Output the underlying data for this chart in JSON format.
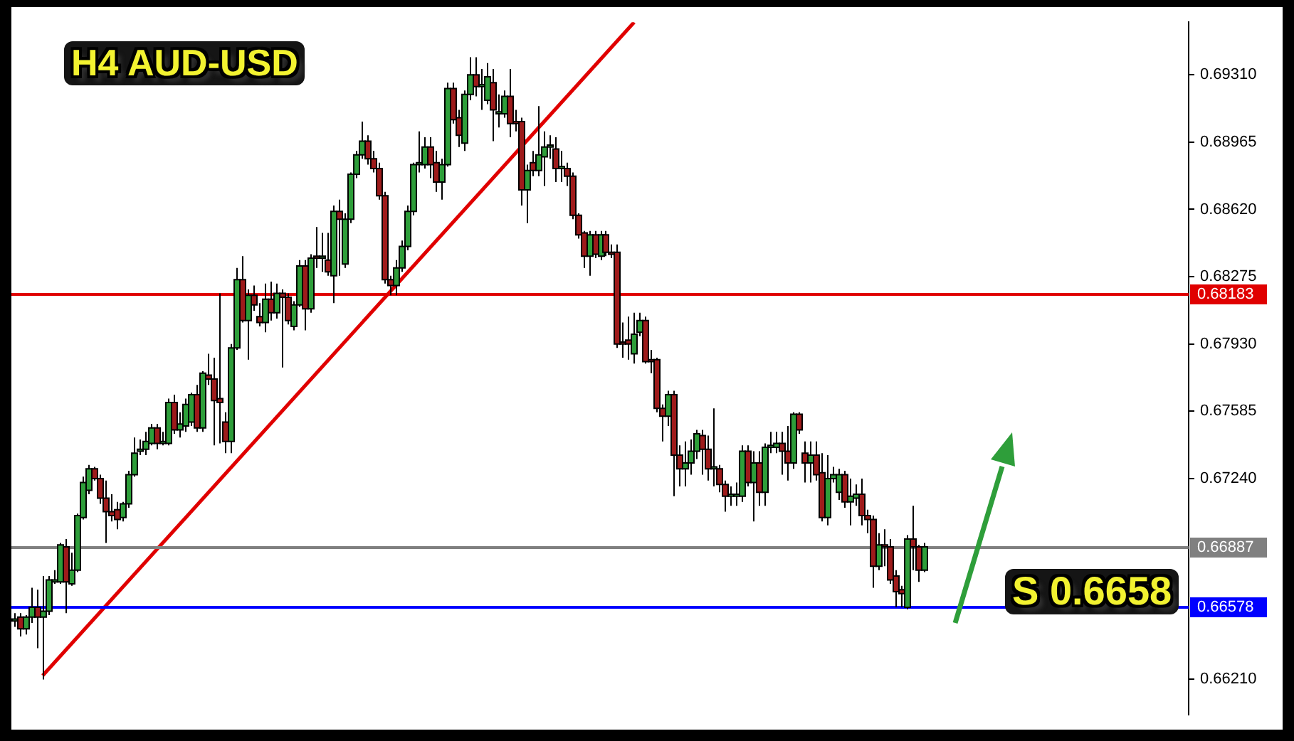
{
  "chart_data": {
    "type": "candlestick",
    "title": "H4 AUD-USD",
    "annotations": [
      "S 0.6658"
    ],
    "tick_labels": "y",
    "ylim": [
      0.6603,
      0.6958
    ],
    "yticks": [
      {
        "value": 0.6621,
        "label": "0.66210"
      },
      {
        "value": 0.6724,
        "label": "0.67240"
      },
      0.67585,
      {
        "value": 0.6793,
        "label": "0.67930"
      },
      0.68275,
      {
        "value": 0.6862,
        "label": "0.68620"
      },
      0.68965,
      {
        "value": 0.6931,
        "label": "0.69310"
      }
    ],
    "ref_lines": [
      {
        "axis": "y",
        "value": 0.68183,
        "label": "0.68183",
        "color": "#e00000"
      },
      {
        "axis": "y",
        "value": 0.66887,
        "label": "0.66887",
        "color": "#808080"
      },
      {
        "axis": "y",
        "value": 0.66578,
        "label": "0.66578",
        "color": "#0000ff"
      }
    ],
    "series": [
      {
        "type": "line",
        "color": "#e00000",
        "values": [
          null,
          null,
          null,
          null,
          null,
          0.6623,
          null,
          null,
          null,
          null,
          null,
          null,
          null,
          null,
          null,
          null,
          null,
          null,
          null,
          null,
          null,
          null,
          null,
          null,
          null,
          null,
          null,
          null,
          null,
          null,
          null,
          null,
          null,
          null,
          null,
          null,
          null,
          null,
          null,
          null,
          null,
          null,
          null,
          null,
          null,
          null,
          null,
          null,
          null,
          null,
          null,
          null,
          null,
          null,
          null,
          null,
          null,
          null,
          null,
          null,
          null,
          null,
          null,
          null,
          null,
          null,
          null,
          null,
          null,
          null,
          null,
          null,
          null,
          null,
          null,
          null,
          null,
          null,
          null,
          null,
          null,
          null,
          null,
          null,
          null,
          null,
          null,
          null,
          null,
          null,
          null,
          null,
          null,
          null,
          null,
          null,
          null,
          null,
          null,
          null,
          null,
          null,
          null,
          null,
          null,
          null,
          null,
          null,
          null,
          0.6958,
          null,
          null,
          null,
          null,
          null,
          null,
          null,
          null,
          null,
          null,
          null,
          null,
          null,
          null,
          null,
          null,
          null,
          null,
          null,
          null,
          null,
          null,
          null,
          null,
          null,
          null,
          null,
          null,
          null,
          null,
          null,
          null,
          null,
          null,
          null,
          null,
          null,
          null,
          null,
          null,
          null,
          null,
          null,
          null,
          null,
          null,
          null,
          null,
          null,
          null,
          null,
          null,
          null,
          null,
          null,
          null,
          null,
          null,
          null,
          null,
          null,
          null,
          null,
          null,
          null,
          null,
          null,
          null,
          null,
          null,
          null,
          null,
          null,
          null,
          null,
          null,
          null,
          null,
          null,
          null,
          null,
          null,
          null,
          null,
          null,
          null,
          null,
          null,
          null,
          null,
          null,
          null,
          null,
          null,
          null,
          null,
          null
        ]
      }
    ],
    "categories": [
      null,
      null,
      null,
      null,
      null,
      null,
      null,
      null,
      null,
      null,
      null,
      null,
      null,
      null,
      null,
      null,
      null,
      null,
      null,
      null,
      null,
      null,
      null,
      null,
      null,
      null,
      null,
      null,
      null,
      null,
      null,
      null,
      null,
      null,
      null,
      null,
      null,
      null,
      null,
      null,
      null,
      null,
      null,
      null,
      null,
      null,
      null,
      null,
      null,
      null,
      null,
      null,
      null,
      null,
      null,
      null,
      null,
      null,
      null,
      null,
      null,
      null,
      null,
      null,
      null,
      null,
      null,
      null,
      null,
      null,
      null,
      null,
      null,
      null,
      null,
      null,
      null,
      null,
      null,
      null,
      null,
      null,
      null,
      null,
      null,
      null,
      null,
      null,
      null,
      null,
      null,
      null,
      null,
      null,
      null,
      null,
      null,
      null,
      null,
      null,
      null,
      null,
      null,
      null,
      null,
      null,
      null,
      null,
      null,
      null,
      null,
      null,
      null,
      null,
      null,
      null,
      null,
      null,
      null,
      null,
      null,
      null,
      null,
      null,
      null,
      null,
      null,
      null,
      null,
      null,
      null,
      null,
      null,
      null,
      null,
      null,
      null,
      null,
      null,
      null,
      null,
      null,
      null,
      null,
      null,
      null,
      null,
      null,
      null,
      null,
      null,
      null,
      null,
      null,
      null,
      null,
      null,
      null,
      null,
      null,
      null,
      null,
      null,
      null,
      null,
      null,
      null,
      null,
      null,
      null,
      null,
      null,
      null,
      null,
      null,
      null,
      null,
      null,
      null,
      null,
      null,
      null,
      null,
      null,
      null,
      null,
      null,
      null,
      null,
      null,
      null,
      null,
      null,
      null,
      null,
      null,
      null,
      null,
      null,
      null,
      null,
      null,
      null,
      null,
      null,
      null,
      null
    ],
    "ohlc": [
      [
        0.6651,
        0.6655,
        0.6648,
        0.6652
      ],
      [
        0.6653,
        0.6655,
        0.6643,
        0.6647
      ],
      [
        0.6647,
        0.6654,
        0.6644,
        0.6653
      ],
      [
        0.6653,
        0.6668,
        0.665,
        0.6658
      ],
      [
        0.6658,
        0.6667,
        0.6637,
        0.6653
      ],
      [
        0.6653,
        0.6674,
        0.6621,
        0.6656
      ],
      [
        0.6656,
        0.6674,
        0.6654,
        0.6672
      ],
      [
        0.6671,
        0.6677,
        0.667,
        0.6672
      ],
      [
        0.6671,
        0.6691,
        0.667,
        0.669
      ],
      [
        0.6689,
        0.6693,
        0.6655,
        0.6671
      ],
      [
        0.667,
        0.6686,
        0.6669,
        0.6677
      ],
      [
        0.6677,
        0.6706,
        0.6676,
        0.6705
      ],
      [
        0.6704,
        0.6725,
        0.6703,
        0.6722
      ],
      [
        0.6718,
        0.6731,
        0.6716,
        0.6729
      ],
      [
        0.6729,
        0.673,
        0.6723,
        0.6724
      ],
      [
        0.6724,
        0.6726,
        0.6711,
        0.6714
      ],
      [
        0.6714,
        0.6723,
        0.6691,
        0.6707
      ],
      [
        0.6707,
        0.6716,
        0.6702,
        0.6705
      ],
      [
        0.6708,
        0.6712,
        0.6698,
        0.6703
      ],
      [
        0.6704,
        0.6712,
        0.6702,
        0.6711
      ],
      [
        0.6711,
        0.6728,
        0.6709,
        0.6726
      ],
      [
        0.6726,
        0.6745,
        0.6725,
        0.6737
      ],
      [
        0.6738,
        0.6744,
        0.6736,
        0.6739
      ],
      [
        0.6739,
        0.6748,
        0.6736,
        0.6743
      ],
      [
        0.6742,
        0.6752,
        0.6741,
        0.675
      ],
      [
        0.675,
        0.6752,
        0.6739,
        0.6742
      ],
      [
        0.6742,
        0.6748,
        0.6741,
        0.6743
      ],
      [
        0.6742,
        0.6765,
        0.6741,
        0.6763
      ],
      [
        0.6763,
        0.6767,
        0.6747,
        0.6749
      ],
      [
        0.6749,
        0.6758,
        0.6745,
        0.6752
      ],
      [
        0.6751,
        0.6765,
        0.6748,
        0.6762
      ],
      [
        0.6753,
        0.6768,
        0.6751,
        0.6767
      ],
      [
        0.6767,
        0.6772,
        0.6748,
        0.675
      ],
      [
        0.675,
        0.6779,
        0.6748,
        0.6778
      ],
      [
        0.6777,
        0.6788,
        0.6772,
        0.6775
      ],
      [
        0.6775,
        0.6786,
        0.6741,
        0.6764
      ],
      [
        0.6765,
        0.6819,
        0.6742,
        0.6763
      ],
      [
        0.6753,
        0.6758,
        0.6737,
        0.6743
      ],
      [
        0.6743,
        0.6793,
        0.6737,
        0.6791
      ],
      [
        0.6791,
        0.6832,
        0.679,
        0.6826
      ],
      [
        0.6826,
        0.6838,
        0.6804,
        0.6805
      ],
      [
        0.6805,
        0.6821,
        0.6785,
        0.6818
      ],
      [
        0.6818,
        0.6823,
        0.681,
        0.6813
      ],
      [
        0.6807,
        0.6814,
        0.6802,
        0.6804
      ],
      [
        0.6804,
        0.6824,
        0.6799,
        0.6816
      ],
      [
        0.6816,
        0.6825,
        0.6805,
        0.6809
      ],
      [
        0.6809,
        0.6824,
        0.6806,
        0.6819
      ],
      [
        0.6819,
        0.6821,
        0.6781,
        0.6817
      ],
      [
        0.6817,
        0.6819,
        0.6803,
        0.6805
      ],
      [
        0.6802,
        0.6815,
        0.68,
        0.6813
      ],
      [
        0.6813,
        0.6836,
        0.6812,
        0.6833
      ],
      [
        0.6833,
        0.6836,
        0.68,
        0.6811
      ],
      [
        0.6811,
        0.6839,
        0.6809,
        0.6837
      ],
      [
        0.6838,
        0.6853,
        0.6832,
        0.6837
      ],
      [
        0.6837,
        0.685,
        0.683,
        0.6838
      ],
      [
        0.6836,
        0.685,
        0.6828,
        0.683
      ],
      [
        0.6828,
        0.6864,
        0.6814,
        0.6861
      ],
      [
        0.6861,
        0.6867,
        0.6828,
        0.6857
      ],
      [
        0.6834,
        0.686,
        0.6832,
        0.6857
      ],
      [
        0.6857,
        0.6881,
        0.6855,
        0.688
      ],
      [
        0.688,
        0.6892,
        0.6878,
        0.689
      ],
      [
        0.689,
        0.6907,
        0.6888,
        0.6897
      ],
      [
        0.6897,
        0.69,
        0.6885,
        0.6888
      ],
      [
        0.6888,
        0.6892,
        0.6881,
        0.6883
      ],
      [
        0.6883,
        0.6886,
        0.6867,
        0.6869
      ],
      [
        0.6869,
        0.6871,
        0.6824,
        0.6826
      ],
      [
        0.6826,
        0.6828,
        0.6818,
        0.6823
      ],
      [
        0.6823,
        0.6836,
        0.6818,
        0.6832
      ],
      [
        0.6832,
        0.6846,
        0.683,
        0.6843
      ],
      [
        0.6843,
        0.6864,
        0.6841,
        0.6861
      ],
      [
        0.6861,
        0.6886,
        0.6859,
        0.6885
      ],
      [
        0.6885,
        0.6902,
        0.6881,
        0.6886
      ],
      [
        0.6885,
        0.6899,
        0.6883,
        0.6894
      ],
      [
        0.6894,
        0.6899,
        0.6878,
        0.6885
      ],
      [
        0.6886,
        0.6892,
        0.6871,
        0.6876
      ],
      [
        0.6876,
        0.6888,
        0.6867,
        0.6885
      ],
      [
        0.6885,
        0.6927,
        0.6884,
        0.6924
      ],
      [
        0.6924,
        0.6927,
        0.6906,
        0.6908
      ],
      [
        0.6909,
        0.6913,
        0.6894,
        0.69
      ],
      [
        0.6896,
        0.6923,
        0.6892,
        0.6921
      ],
      [
        0.6921,
        0.694,
        0.6918,
        0.6931
      ],
      [
        0.6931,
        0.694,
        0.692,
        0.6925
      ],
      [
        0.6925,
        0.6934,
        0.6913,
        0.6926
      ],
      [
        0.6918,
        0.6937,
        0.6916,
        0.693
      ],
      [
        0.6927,
        0.6934,
        0.6897,
        0.6913
      ],
      [
        0.6911,
        0.6921,
        0.6904,
        0.6912
      ],
      [
        0.6911,
        0.6923,
        0.6909,
        0.692
      ],
      [
        0.692,
        0.6934,
        0.6899,
        0.6906
      ],
      [
        0.6907,
        0.6913,
        0.6902,
        0.6906
      ],
      [
        0.6907,
        0.6909,
        0.6864,
        0.6872
      ],
      [
        0.6872,
        0.6885,
        0.6855,
        0.6882
      ],
      [
        0.6886,
        0.6892,
        0.6879,
        0.6882
      ],
      [
        0.6882,
        0.6915,
        0.6879,
        0.689
      ],
      [
        0.6889,
        0.6902,
        0.6874,
        0.6894
      ],
      [
        0.6894,
        0.69,
        0.6888,
        0.6895
      ],
      [
        0.6893,
        0.6899,
        0.6876,
        0.6883
      ],
      [
        0.6883,
        0.6892,
        0.6876,
        0.6884
      ],
      [
        0.6883,
        0.6886,
        0.6874,
        0.6879
      ],
      [
        0.6879,
        0.6881,
        0.6857,
        0.6859
      ],
      [
        0.6859,
        0.686,
        0.6847,
        0.6849
      ],
      [
        0.685,
        0.6851,
        0.6832,
        0.6838
      ],
      [
        0.6838,
        0.6851,
        0.6828,
        0.6849
      ],
      [
        0.6849,
        0.6851,
        0.6837,
        0.6839
      ],
      [
        0.6838,
        0.6851,
        0.6836,
        0.6849
      ],
      [
        0.6849,
        0.6851,
        0.6838,
        0.684
      ],
      [
        0.684,
        0.6844,
        0.6837,
        0.6839
      ],
      [
        0.684,
        0.6844,
        0.6791,
        0.6793
      ],
      [
        0.6794,
        0.6804,
        0.6786,
        0.6793
      ],
      [
        0.6795,
        0.6807,
        0.6785,
        0.6793
      ],
      [
        0.6788,
        0.6809,
        0.6783,
        0.6798
      ],
      [
        0.6799,
        0.6809,
        0.6797,
        0.6805
      ],
      [
        0.6805,
        0.6807,
        0.6783,
        0.6784
      ],
      [
        0.6785,
        0.679,
        0.6778,
        0.6784
      ],
      [
        0.6785,
        0.6786,
        0.6758,
        0.676
      ],
      [
        0.676,
        0.6762,
        0.6743,
        0.6756
      ],
      [
        0.6756,
        0.6769,
        0.6751,
        0.6767
      ],
      [
        0.6767,
        0.6769,
        0.6715,
        0.6736
      ],
      [
        0.6736,
        0.6741,
        0.672,
        0.6729
      ],
      [
        0.6729,
        0.6743,
        0.672,
        0.6732
      ],
      [
        0.6732,
        0.6744,
        0.6726,
        0.6738
      ],
      [
        0.6738,
        0.6749,
        0.6734,
        0.6747
      ],
      [
        0.6746,
        0.6749,
        0.6726,
        0.6739
      ],
      [
        0.6739,
        0.6746,
        0.6723,
        0.6729
      ],
      [
        0.6729,
        0.676,
        0.672,
        0.673
      ],
      [
        0.6729,
        0.6731,
        0.6717,
        0.6721
      ],
      [
        0.6721,
        0.6723,
        0.6707,
        0.6715
      ],
      [
        0.6715,
        0.672,
        0.671,
        0.6716
      ],
      [
        0.6715,
        0.6722,
        0.671,
        0.6716
      ],
      [
        0.6715,
        0.6741,
        0.6712,
        0.6738
      ],
      [
        0.6738,
        0.6741,
        0.672,
        0.6722
      ],
      [
        0.6722,
        0.6738,
        0.6702,
        0.6732
      ],
      [
        0.6732,
        0.6738,
        0.671,
        0.6717
      ],
      [
        0.6717,
        0.6742,
        0.671,
        0.674
      ],
      [
        0.674,
        0.6748,
        0.6737,
        0.6741
      ],
      [
        0.674,
        0.6748,
        0.6737,
        0.6742
      ],
      [
        0.6742,
        0.6748,
        0.6726,
        0.6738
      ],
      [
        0.6738,
        0.6751,
        0.6723,
        0.6732
      ],
      [
        0.6732,
        0.6758,
        0.6729,
        0.6757
      ],
      [
        0.6757,
        0.6758,
        0.6747,
        0.6749
      ],
      [
        0.6737,
        0.6743,
        0.6722,
        0.6732
      ],
      [
        0.6732,
        0.6743,
        0.6722,
        0.6736
      ],
      [
        0.6736,
        0.6743,
        0.6723,
        0.6726
      ],
      [
        0.6727,
        0.6737,
        0.6702,
        0.6704
      ],
      [
        0.6704,
        0.6736,
        0.67,
        0.6724
      ],
      [
        0.6724,
        0.673,
        0.6722,
        0.6726
      ],
      [
        0.6717,
        0.6729,
        0.6713,
        0.6726
      ],
      [
        0.6726,
        0.6728,
        0.6709,
        0.6712
      ],
      [
        0.6712,
        0.6724,
        0.67,
        0.6715
      ],
      [
        0.6714,
        0.6721,
        0.671,
        0.6716
      ],
      [
        0.6716,
        0.6724,
        0.67,
        0.6705
      ],
      [
        0.6705,
        0.6708,
        0.6696,
        0.6703
      ],
      [
        0.6703,
        0.6705,
        0.6668,
        0.6679
      ],
      [
        0.6679,
        0.6696,
        0.6677,
        0.669
      ],
      [
        0.669,
        0.6698,
        0.6679,
        0.6689
      ],
      [
        0.6689,
        0.6693,
        0.667,
        0.6672
      ],
      [
        0.6674,
        0.6677,
        0.6658,
        0.6666
      ],
      [
        0.6667,
        0.6669,
        0.6658,
        0.6665
      ],
      [
        0.6658,
        0.6695,
        0.6657,
        0.6693
      ],
      [
        0.6693,
        0.671,
        0.6677,
        0.6689
      ],
      [
        0.6689,
        0.669,
        0.6671,
        0.6677
      ],
      [
        0.6677,
        0.6691,
        0.6676,
        0.6689
      ],
      null,
      null,
      null,
      null,
      null,
      null,
      null,
      null,
      null,
      null,
      null,
      null,
      null,
      null,
      null,
      null,
      null,
      null,
      null,
      null,
      null,
      null,
      null,
      null,
      null,
      null,
      null,
      null,
      null,
      null,
      null,
      null,
      null,
      null,
      null,
      null,
      null,
      null,
      null,
      null,
      null,
      null,
      null,
      null,
      null,
      null
    ],
    "colors": [
      "#2e9e3a",
      "#9e1b1b",
      "#2e9e3a",
      "#2e9e3a",
      "#9e1b1b",
      "#2e9e3a",
      "#2e9e3a",
      "#2e9e3a",
      "#2e9e3a",
      "#9e1b1b",
      "#2e9e3a",
      "#2e9e3a",
      "#2e9e3a",
      "#2e9e3a",
      "#9e1b1b",
      "#9e1b1b",
      "#9e1b1b",
      "#9e1b1b",
      "#9e1b1b",
      "#2e9e3a",
      "#2e9e3a",
      "#2e9e3a",
      "#2e9e3a",
      "#2e9e3a",
      "#2e9e3a",
      "#9e1b1b",
      "#2e9e3a",
      "#2e9e3a",
      "#9e1b1b",
      "#2e9e3a",
      "#2e9e3a",
      "#2e9e3a",
      "#9e1b1b",
      "#2e9e3a",
      "#9e1b1b",
      "#9e1b1b",
      "#9e1b1b",
      "#9e1b1b",
      "#2e9e3a",
      "#2e9e3a",
      "#9e1b1b",
      "#2e9e3a",
      "#9e1b1b",
      "#9e1b1b",
      "#2e9e3a",
      "#9e1b1b",
      "#2e9e3a",
      "#9e1b1b",
      "#9e1b1b",
      "#2e9e3a",
      "#2e9e3a",
      "#9e1b1b",
      "#2e9e3a",
      "#9e1b1b",
      "#2e9e3a",
      "#9e1b1b",
      "#2e9e3a",
      "#9e1b1b",
      "#2e9e3a",
      "#2e9e3a",
      "#2e9e3a",
      "#2e9e3a",
      "#9e1b1b",
      "#9e1b1b",
      "#9e1b1b",
      "#9e1b1b",
      "#9e1b1b",
      "#2e9e3a",
      "#2e9e3a",
      "#2e9e3a",
      "#2e9e3a",
      "#2e9e3a",
      "#2e9e3a",
      "#9e1b1b",
      "#9e1b1b",
      "#2e9e3a",
      "#2e9e3a",
      "#9e1b1b",
      "#9e1b1b",
      "#2e9e3a",
      "#2e9e3a",
      "#9e1b1b",
      "#2e9e3a",
      "#2e9e3a",
      "#9e1b1b",
      "#2e9e3a",
      "#2e9e3a",
      "#9e1b1b",
      "#9e1b1b",
      "#9e1b1b",
      "#2e9e3a",
      "#9e1b1b",
      "#2e9e3a",
      "#2e9e3a",
      "#2e9e3a",
      "#9e1b1b",
      "#2e9e3a",
      "#9e1b1b",
      "#9e1b1b",
      "#9e1b1b",
      "#9e1b1b",
      "#2e9e3a",
      "#9e1b1b",
      "#2e9e3a",
      "#9e1b1b",
      "#9e1b1b",
      "#9e1b1b",
      "#9e1b1b",
      "#9e1b1b",
      "#2e9e3a",
      "#2e9e3a",
      "#9e1b1b",
      "#9e1b1b",
      "#9e1b1b",
      "#9e1b1b",
      "#2e9e3a",
      "#9e1b1b",
      "#9e1b1b",
      "#2e9e3a",
      "#2e9e3a",
      "#2e9e3a",
      "#9e1b1b",
      "#9e1b1b",
      "#2e9e3a",
      "#9e1b1b",
      "#9e1b1b",
      "#2e9e3a",
      "#2e9e3a",
      "#2e9e3a",
      "#9e1b1b",
      "#2e9e3a",
      "#9e1b1b",
      "#2e9e3a",
      "#2e9e3a",
      "#2e9e3a",
      "#9e1b1b",
      "#9e1b1b",
      "#2e9e3a",
      "#9e1b1b",
      "#9e1b1b",
      "#2e9e3a",
      "#9e1b1b",
      "#9e1b1b",
      "#2e9e3a",
      "#2e9e3a",
      "#2e9e3a",
      "#9e1b1b",
      "#2e9e3a",
      "#2e9e3a",
      "#9e1b1b",
      "#9e1b1b",
      "#9e1b1b",
      "#2e9e3a",
      "#9e1b1b",
      "#9e1b1b",
      "#9e1b1b",
      "#9e1b1b",
      "#2e9e3a",
      "#9e1b1b",
      "#9e1b1b",
      "#2e9e3a",
      null,
      null,
      null,
      null,
      null,
      null,
      null,
      null,
      null,
      null,
      null,
      null,
      null,
      null,
      null,
      null,
      null,
      null,
      null,
      null,
      null,
      null,
      null,
      null,
      null,
      null,
      null,
      null,
      null,
      null,
      null,
      null,
      null,
      null,
      null,
      null,
      null,
      null,
      null,
      null,
      null,
      null,
      null,
      null,
      null,
      null
    ]
  }
}
